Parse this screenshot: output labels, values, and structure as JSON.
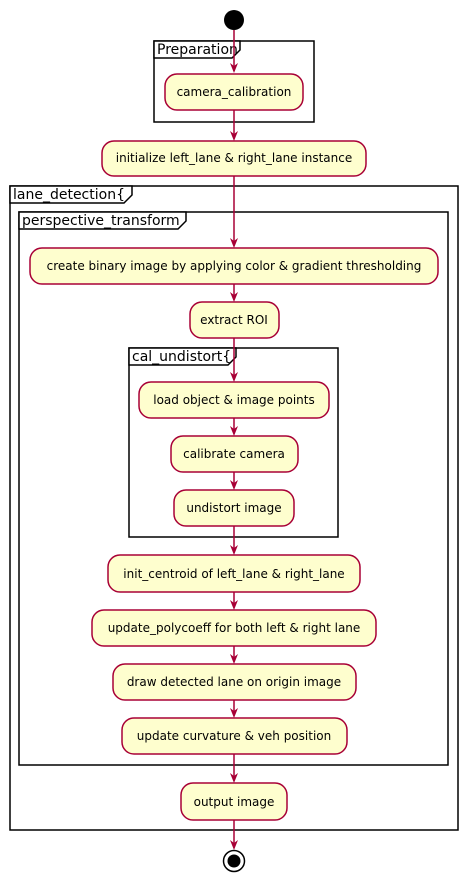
{
  "diagram": {
    "partitions": {
      "preparation": "Preparation",
      "lane_detection": "lane_detection{",
      "perspective_transform": "perspective_transform",
      "cal_undistort": "cal_undistort{"
    },
    "activities": {
      "camera_calibration": "camera_calibration",
      "init_lanes": "initialize left_lane & right_lane instance",
      "binary_image": "create binary image by applying color & gradient thresholding",
      "extract_roi": "extract ROI",
      "load_points": "load object & image points",
      "calibrate_camera": "calibrate camera",
      "undistort_image": "undistort image",
      "init_centroid": "init_centroid of left_lane & right_lane",
      "update_polycoeff": "update_polycoeff for both left & right lane",
      "draw_lane": "draw detected lane on origin image",
      "update_curvature": "update curvature & veh position",
      "output_image": "output image"
    },
    "colors": {
      "node_fill": "#FEFECE",
      "node_border": "#A80036",
      "edge": "#A80036",
      "frame": "#000000",
      "start_end": "#000000"
    },
    "icons": {
      "start": "start-node",
      "end": "end-node"
    }
  }
}
